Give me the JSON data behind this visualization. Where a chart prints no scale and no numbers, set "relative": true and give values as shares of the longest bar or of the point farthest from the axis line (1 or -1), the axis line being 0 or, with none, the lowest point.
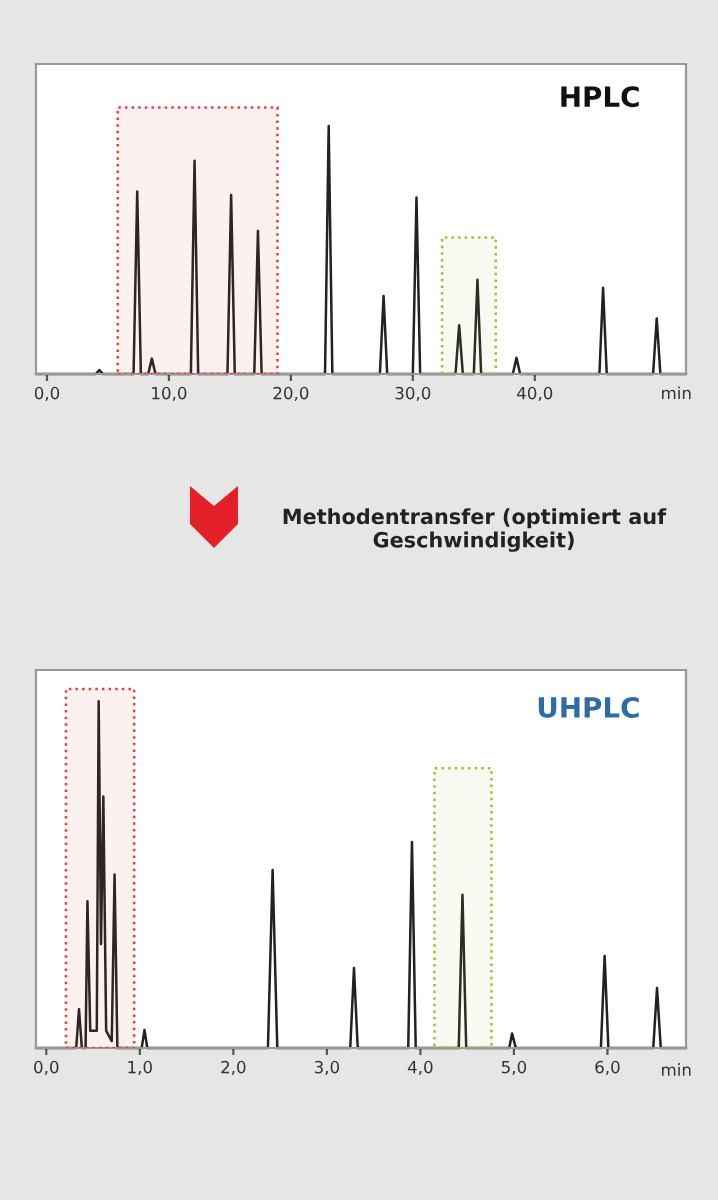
{
  "chart_data": [
    {
      "type": "line",
      "title": "HPLC",
      "xlabel": "min",
      "relative": true,
      "annotations": [
        "Methodentransfer (optimiert auf Geschwindigkeit)"
      ],
      "bands": [
        {
          "axis": "x",
          "from": 5.8,
          "to": 18.9,
          "color": "#e8413a"
        },
        {
          "axis": "x",
          "from": 32.4,
          "to": 36.8,
          "color": "#a8b83a"
        }
      ],
      "xlim": [
        -0.9,
        52.4
      ],
      "xticks": [
        {
          "value": 0,
          "label": "0,0"
        },
        {
          "value": 10,
          "label": "10,0"
        },
        {
          "value": 20,
          "label": "20,0"
        },
        {
          "value": 30,
          "label": "30,0"
        },
        {
          "value": 40,
          "label": "40,0"
        }
      ],
      "series": [
        {
          "color": "#222222",
          "x": [
            -0.9,
            4.0,
            4.3,
            4.6,
            7.1,
            7.4,
            7.7,
            8.3,
            8.6,
            8.9,
            11.8,
            12.1,
            12.4,
            14.8,
            15.1,
            15.4,
            17.0,
            17.3,
            17.6,
            22.8,
            23.1,
            23.4,
            27.3,
            27.6,
            27.9,
            30.0,
            30.3,
            30.6,
            33.5,
            33.8,
            34.1,
            35.0,
            35.3,
            35.6,
            38.2,
            38.5,
            38.8,
            45.3,
            45.6,
            45.9,
            49.7,
            50.0,
            50.3,
            52.4
          ],
          "values": [
            0,
            0,
            0.016,
            0,
            0,
            0.736,
            0,
            0,
            0.062,
            0,
            0,
            0.86,
            0,
            0,
            0.722,
            0,
            0,
            0.577,
            0,
            0,
            1.0,
            0,
            0,
            0.315,
            0,
            0,
            0.712,
            0,
            0,
            0.197,
            0,
            0,
            0.38,
            0,
            0,
            0.065,
            0,
            0,
            0.348,
            0,
            0,
            0.224,
            0,
            0
          ]
        }
      ],
      "grid": false,
      "legend": false
    },
    {
      "type": "line",
      "title": "UHPLC",
      "xlabel": "min",
      "relative": true,
      "bands": [
        {
          "axis": "x",
          "from": 0.21,
          "to": 0.94,
          "color": "#e8413a"
        },
        {
          "axis": "x",
          "from": 4.15,
          "to": 4.76,
          "color": "#a8b83a"
        }
      ],
      "xlim": [
        -0.11,
        6.84
      ],
      "xticks": [
        {
          "value": 0,
          "label": "0,0"
        },
        {
          "value": 1,
          "label": "1,0"
        },
        {
          "value": 2,
          "label": "2,0"
        },
        {
          "value": 3,
          "label": "3,0"
        },
        {
          "value": 4,
          "label": "4,0"
        },
        {
          "value": 5,
          "label": "5,0"
        },
        {
          "value": 6,
          "label": "6,0"
        }
      ],
      "series": [
        {
          "color": "#222222",
          "x": [
            -0.11,
            0.32,
            0.35,
            0.38,
            0.42,
            0.44,
            0.47,
            0.54,
            0.56,
            0.585,
            0.61,
            0.64,
            0.7,
            0.73,
            0.76,
            1.02,
            1.05,
            1.08,
            2.37,
            2.42,
            2.47,
            3.25,
            3.29,
            3.33,
            3.87,
            3.91,
            3.95,
            4.41,
            4.45,
            4.49,
            4.95,
            4.98,
            5.02,
            5.93,
            5.97,
            6.01,
            6.49,
            6.53,
            6.57,
            6.84
          ],
          "values": [
            0,
            0,
            0.112,
            0,
            0,
            0.423,
            0.05,
            0.05,
            1.0,
            0.3,
            0.725,
            0.05,
            0.02,
            0.5,
            0,
            0,
            0.052,
            0,
            0,
            0.513,
            0,
            0,
            0.231,
            0,
            0,
            0.594,
            0,
            0,
            0.442,
            0,
            0,
            0.042,
            0,
            0,
            0.265,
            0,
            0,
            0.173,
            0,
            0
          ]
        }
      ],
      "grid": false,
      "legend": false
    }
  ]
}
